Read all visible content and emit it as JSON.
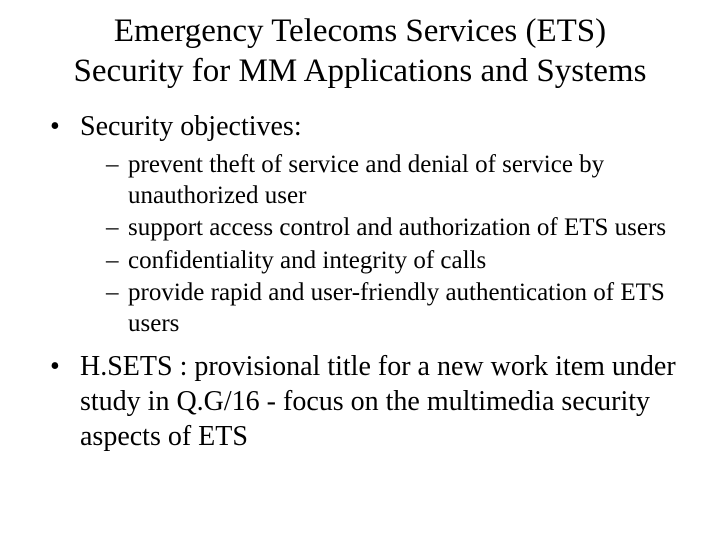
{
  "title_line1": "Emergency Telecoms Services (ETS)",
  "title_line2": "Security for MM Applications and Systems",
  "bullets": [
    {
      "text": "Security objectives:",
      "sub": [
        "prevent theft of service and denial of service by unauthorized user",
        "support access control and authorization of  ETS users",
        "confidentiality and integrity of calls",
        "provide rapid and user-friendly authentication of ETS users"
      ]
    },
    {
      "text": "H.SETS : provisional title for a new work item under study in Q.G/16 - focus on the multimedia security aspects of ETS",
      "sub": []
    }
  ],
  "colors": {
    "background": "#ffffff",
    "text": "#000000"
  },
  "typography": {
    "font_family": "Times New Roman",
    "title_fontsize_pt": 33,
    "body_fontsize_pt": 28,
    "sub_fontsize_pt": 25
  }
}
